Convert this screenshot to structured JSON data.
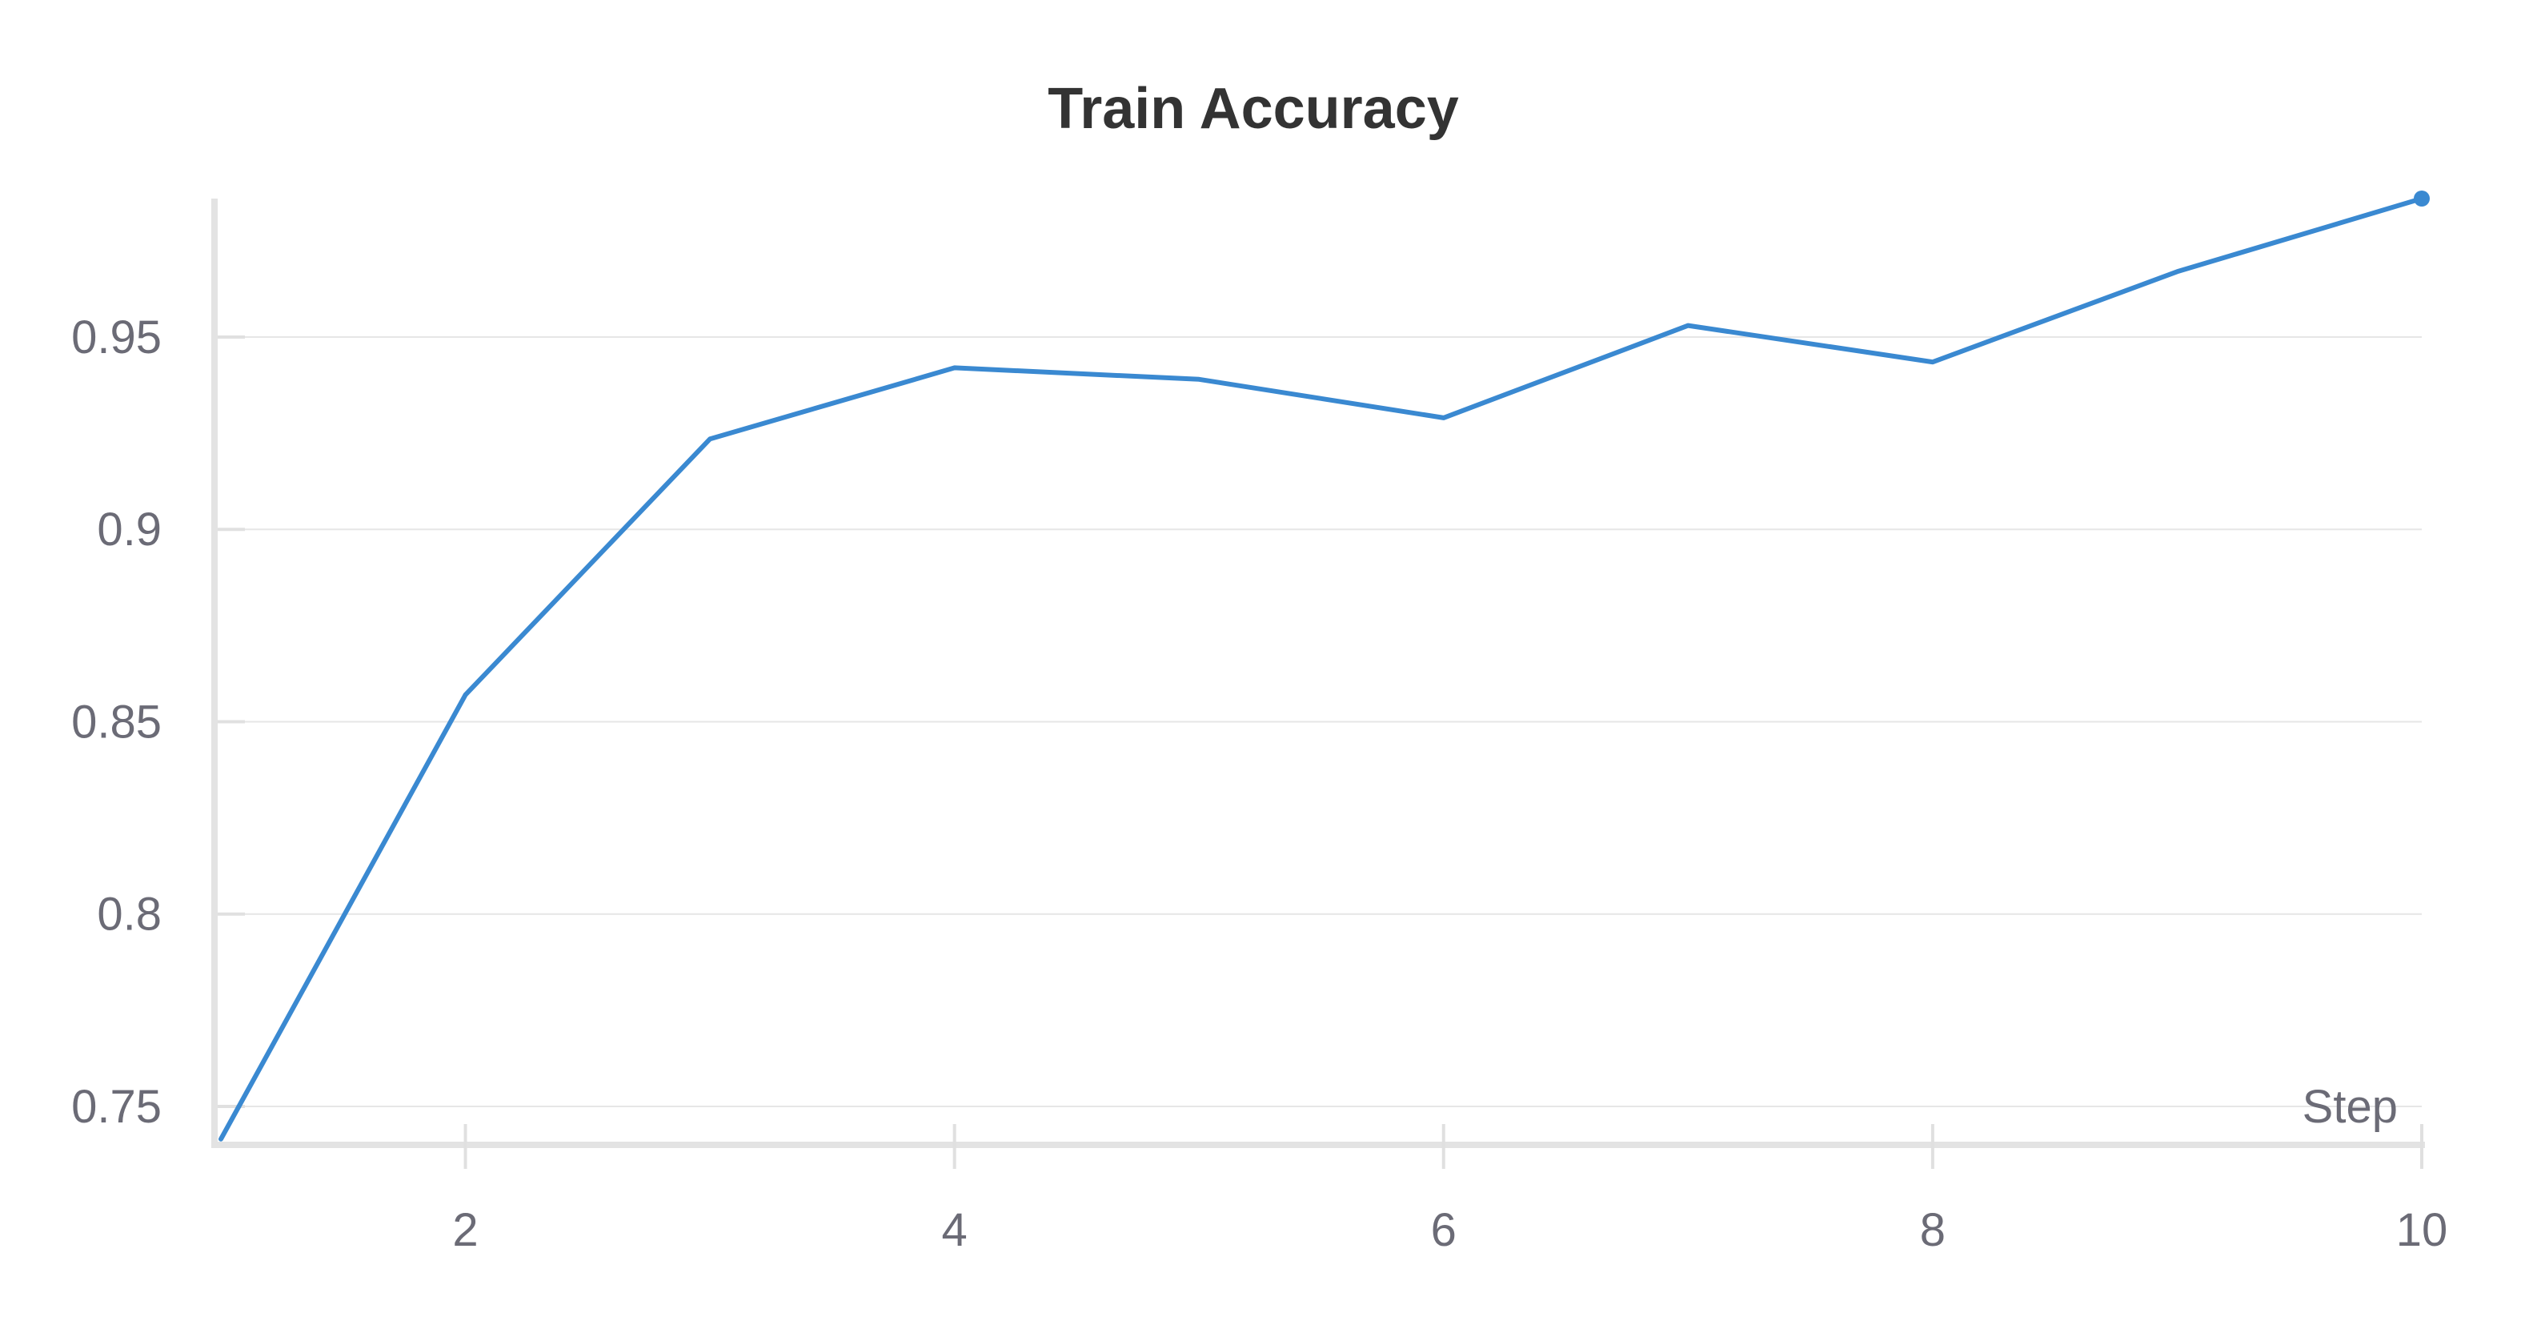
{
  "chart_data": {
    "type": "line",
    "title": "Train Accuracy",
    "xlabel": "Step",
    "ylabel": "",
    "xlim": [
      1,
      10
    ],
    "ylim": [
      0.74,
      0.986
    ],
    "x_ticks": [
      2,
      4,
      6,
      8,
      10
    ],
    "y_ticks": [
      0.75,
      0.8,
      0.85,
      0.9,
      0.95
    ],
    "x_tick_labels": [
      "2",
      "4",
      "6",
      "8",
      "10"
    ],
    "y_tick_labels": [
      "0.75",
      "0.8",
      "0.85",
      "0.9",
      "0.95"
    ],
    "grid": true,
    "line_color": "#3a89d1",
    "series": [
      {
        "x": [
          1,
          2,
          3,
          4,
          5,
          6,
          7,
          8,
          9,
          10
        ],
        "values": [
          0.7415,
          0.857,
          0.9235,
          0.942,
          0.939,
          0.929,
          0.953,
          0.9435,
          0.967,
          0.986
        ]
      }
    ]
  }
}
